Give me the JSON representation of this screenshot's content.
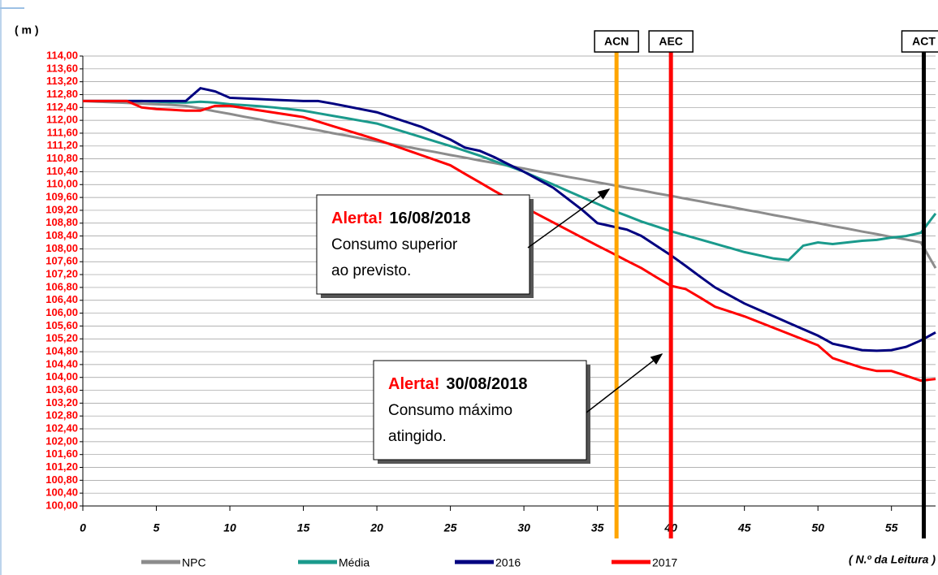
{
  "chart_data": {
    "type": "line",
    "y_label": "( m )",
    "x_label": "( N.º da Leitura )",
    "x": [
      0,
      1,
      2,
      3,
      4,
      5,
      6,
      7,
      8,
      9,
      10,
      11,
      12,
      13,
      14,
      15,
      16,
      17,
      18,
      19,
      20,
      21,
      22,
      23,
      24,
      25,
      26,
      27,
      28,
      29,
      30,
      31,
      32,
      33,
      34,
      35,
      36,
      37,
      38,
      39,
      40,
      41,
      42,
      43,
      44,
      45,
      46,
      47,
      48,
      49,
      50,
      51,
      52,
      53,
      54,
      55,
      56,
      57,
      58
    ],
    "xlim": [
      0,
      58
    ],
    "xticks": [
      0,
      5,
      10,
      15,
      20,
      25,
      30,
      35,
      40,
      45,
      50,
      55
    ],
    "ylim": [
      100,
      114
    ],
    "yticks": [
      {
        "value": 100,
        "label": "100,00"
      },
      {
        "value": 100.4,
        "label": "100,40"
      },
      {
        "value": 100.8,
        "label": "100,80"
      },
      {
        "value": 101.2,
        "label": "101,20"
      },
      {
        "value": 101.6,
        "label": "101,60"
      },
      {
        "value": 102,
        "label": "102,00"
      },
      {
        "value": 102.4,
        "label": "102,40"
      },
      {
        "value": 102.8,
        "label": "102,80"
      },
      {
        "value": 103.2,
        "label": "103,20"
      },
      {
        "value": 103.6,
        "label": "103,60"
      },
      {
        "value": 104,
        "label": "104,00"
      },
      {
        "value": 104.4,
        "label": "104,40"
      },
      {
        "value": 104.8,
        "label": "104,80"
      },
      {
        "value": 105.2,
        "label": "105,20"
      },
      {
        "value": 105.6,
        "label": "105,60"
      },
      {
        "value": 106,
        "label": "106,00"
      },
      {
        "value": 106.4,
        "label": "106,40"
      },
      {
        "value": 106.8,
        "label": "106,80"
      },
      {
        "value": 107.2,
        "label": "107,20"
      },
      {
        "value": 107.6,
        "label": "107,60"
      },
      {
        "value": 108,
        "label": "108,00"
      },
      {
        "value": 108.4,
        "label": "108,40"
      },
      {
        "value": 108.8,
        "label": "108,80"
      },
      {
        "value": 109.2,
        "label": "109,20"
      },
      {
        "value": 109.6,
        "label": "109,60"
      },
      {
        "value": 110,
        "label": "110,00"
      },
      {
        "value": 110.4,
        "label": "110,40"
      },
      {
        "value": 110.8,
        "label": "110,80"
      },
      {
        "value": 111.2,
        "label": "111,20"
      },
      {
        "value": 111.6,
        "label": "111,60"
      },
      {
        "value": 112,
        "label": "112,00"
      },
      {
        "value": 112.4,
        "label": "112,40"
      },
      {
        "value": 112.8,
        "label": "112,80"
      },
      {
        "value": 113.2,
        "label": "113,20"
      },
      {
        "value": 113.6,
        "label": "113,60"
      },
      {
        "value": 114,
        "label": "114,00"
      }
    ],
    "grid": true,
    "series": [
      {
        "name": "NPC",
        "color": "#8c8c8c",
        "values": [
          112.6,
          112.58,
          112.56,
          112.54,
          112.52,
          112.5,
          112.48,
          112.45,
          112.37,
          112.28,
          112.2,
          112.11,
          112.03,
          111.94,
          111.86,
          111.77,
          111.69,
          111.6,
          111.52,
          111.43,
          111.35,
          111.26,
          111.18,
          111.09,
          111.01,
          110.92,
          110.84,
          110.75,
          110.67,
          110.58,
          110.5,
          110.41,
          110.33,
          110.24,
          110.16,
          110.07,
          109.99,
          109.9,
          109.82,
          109.73,
          109.65,
          109.56,
          109.48,
          109.39,
          109.31,
          109.22,
          109.14,
          109.05,
          108.97,
          108.88,
          108.8,
          108.71,
          108.63,
          108.54,
          108.46,
          108.37,
          108.29,
          108.2,
          107.4
        ]
      },
      {
        "name": "Média",
        "color": "#1a9a8c",
        "values": [
          112.6,
          112.6,
          112.6,
          112.6,
          112.6,
          112.58,
          112.56,
          112.55,
          112.58,
          112.55,
          112.5,
          112.47,
          112.44,
          112.4,
          112.35,
          112.3,
          112.22,
          112.14,
          112.06,
          111.98,
          111.9,
          111.76,
          111.62,
          111.48,
          111.34,
          111.2,
          111.05,
          110.9,
          110.73,
          110.57,
          110.4,
          110.2,
          110.0,
          109.8,
          109.6,
          109.4,
          109.2,
          109.03,
          108.85,
          108.7,
          108.55,
          108.42,
          108.29,
          108.16,
          108.03,
          107.9,
          107.8,
          107.7,
          107.65,
          108.1,
          108.2,
          108.15,
          108.2,
          108.25,
          108.28,
          108.35,
          108.4,
          108.5,
          109.1
        ]
      },
      {
        "name": "2016",
        "color": "#000080",
        "values": [
          112.6,
          112.6,
          112.6,
          112.6,
          112.6,
          112.6,
          112.6,
          112.6,
          113.0,
          112.9,
          112.7,
          112.68,
          112.66,
          112.64,
          112.62,
          112.6,
          112.6,
          112.52,
          112.43,
          112.34,
          112.25,
          112.1,
          111.95,
          111.8,
          111.6,
          111.4,
          111.15,
          111.05,
          110.85,
          110.62,
          110.4,
          110.15,
          109.9,
          109.55,
          109.2,
          108.8,
          108.7,
          108.6,
          108.4,
          108.1,
          107.8,
          107.47,
          107.13,
          106.8,
          106.55,
          106.3,
          106.1,
          105.9,
          105.7,
          105.5,
          105.3,
          105.05,
          104.95,
          104.85,
          104.83,
          104.85,
          104.95,
          105.15,
          105.4
        ]
      },
      {
        "name": "2017",
        "color": "#ff0000",
        "values": [
          112.6,
          112.6,
          112.6,
          112.6,
          112.4,
          112.35,
          112.33,
          112.3,
          112.3,
          112.45,
          112.45,
          112.38,
          112.31,
          112.24,
          112.17,
          112.1,
          111.96,
          111.82,
          111.68,
          111.54,
          111.4,
          111.24,
          111.08,
          110.92,
          110.76,
          110.6,
          110.33,
          110.07,
          109.8,
          109.55,
          109.3,
          109.06,
          108.82,
          108.58,
          108.34,
          108.1,
          107.87,
          107.63,
          107.4,
          107.12,
          106.85,
          106.75,
          106.48,
          106.2,
          106.05,
          105.9,
          105.72,
          105.54,
          105.36,
          105.18,
          105.0,
          104.6,
          104.45,
          104.3,
          104.2,
          104.2,
          104.05,
          103.9,
          103.95
        ]
      }
    ],
    "vlines": [
      {
        "label": "ACN",
        "x": 36.3,
        "color": "#ffa500"
      },
      {
        "label": "AEC",
        "x": 40,
        "color": "#ff0000"
      },
      {
        "label": "ACT",
        "x": 57.2,
        "color": "#000000"
      }
    ],
    "annotations": [
      {
        "alert": "Alerta!",
        "date": "16/08/2018",
        "lines": [
          "Consumo superior",
          "ao previsto."
        ]
      },
      {
        "alert": "Alerta!",
        "date": "30/08/2018",
        "lines": [
          "Consumo máximo",
          "atingido."
        ]
      }
    ]
  }
}
